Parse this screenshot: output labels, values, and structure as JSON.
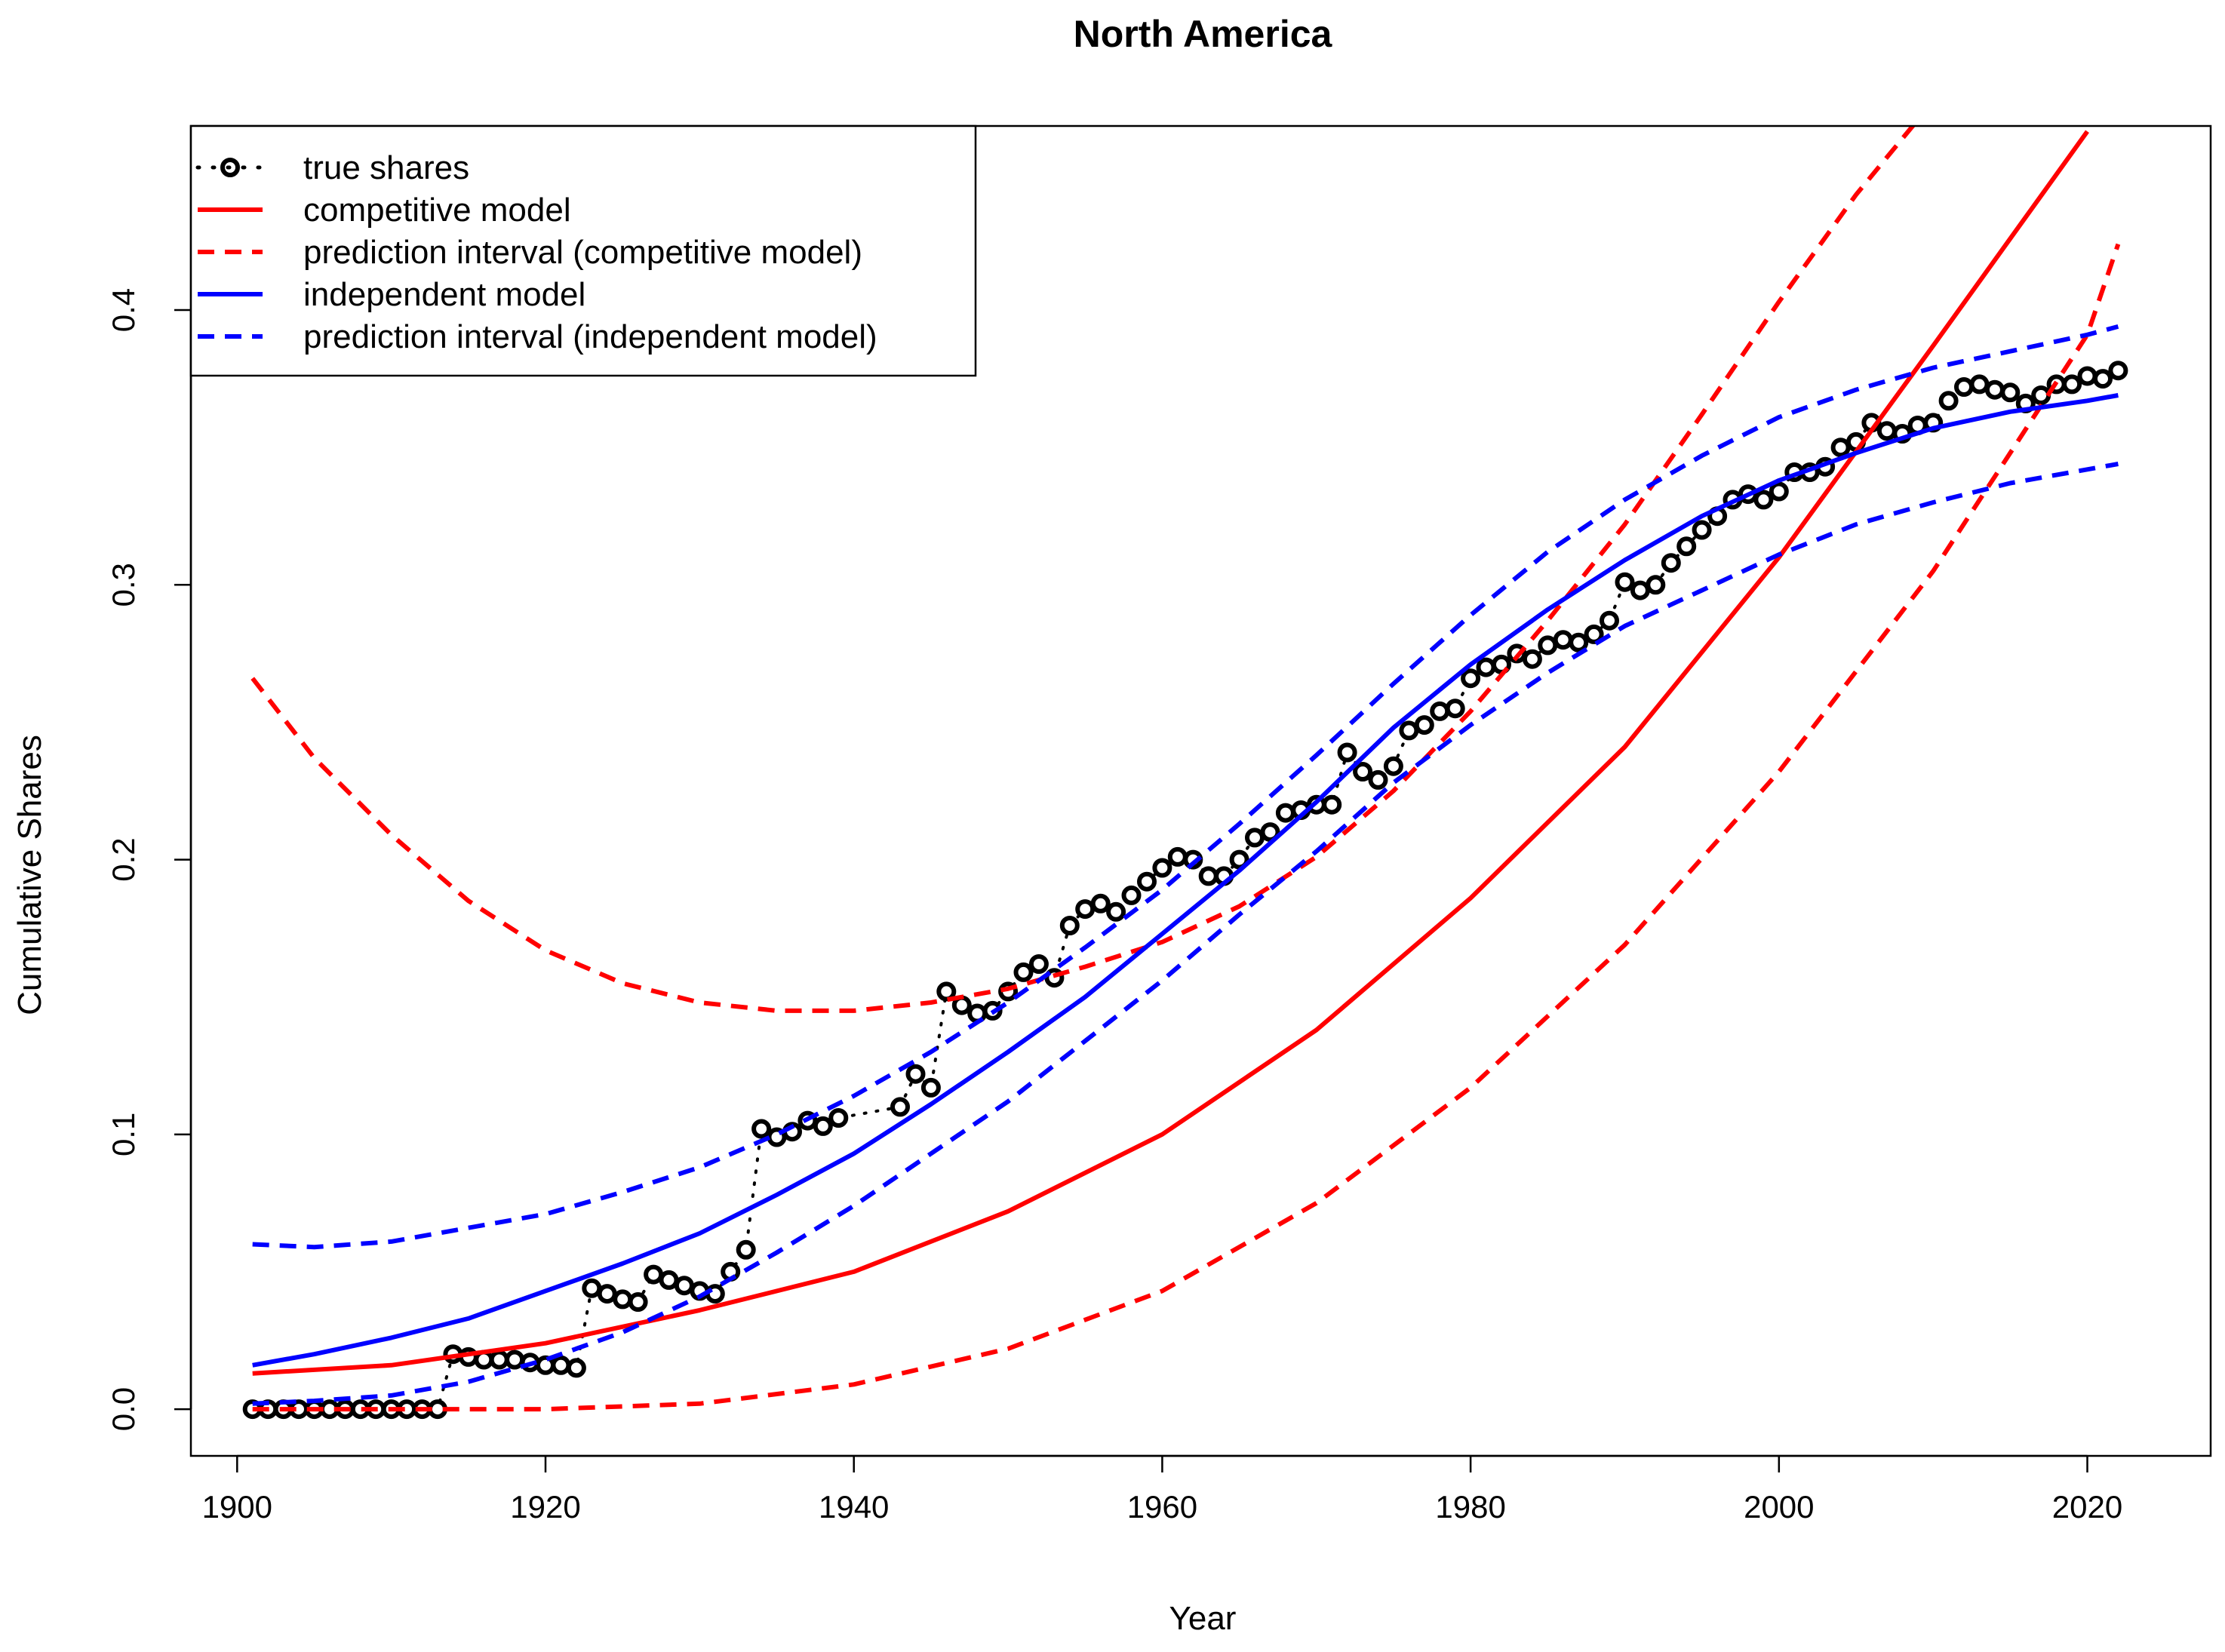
{
  "chart_data": {
    "type": "line",
    "title": "North America",
    "xlabel": "Year",
    "ylabel": "Cumulative Shares",
    "xlim": [
      1897,
      2028
    ],
    "ylim": [
      -0.017,
      0.467
    ],
    "x_ticks": [
      1900,
      1920,
      1940,
      1960,
      1980,
      2000,
      2020
    ],
    "x_tick_labels": [
      "1900",
      "1920",
      "1940",
      "1960",
      "1980",
      "2000",
      "2020"
    ],
    "y_ticks": [
      0.0,
      0.1,
      0.2,
      0.3,
      0.4
    ],
    "y_tick_labels": [
      "0.0",
      "0.1",
      "0.2",
      "0.3",
      "0.4"
    ],
    "grid": false,
    "legend_position": "top-left",
    "colors": {
      "competitive": "#ff0000",
      "independent": "#0000ff",
      "observed": "#000000"
    },
    "series": [
      {
        "name": "true shares",
        "style": "points-dotted",
        "x": [
          1901,
          1902,
          1903,
          1904,
          1905,
          1906,
          1907,
          1908,
          1909,
          1910,
          1911,
          1912,
          1913,
          1914,
          1915,
          1916,
          1917,
          1918,
          1919,
          1920,
          1921,
          1922,
          1923,
          1924,
          1925,
          1926,
          1927,
          1928,
          1929,
          1930,
          1931,
          1932,
          1933,
          1934,
          1935,
          1936,
          1937,
          1938,
          1939,
          1943,
          1944,
          1945,
          1946,
          1947,
          1948,
          1949,
          1950,
          1951,
          1952,
          1953,
          1954,
          1955,
          1956,
          1957,
          1958,
          1959,
          1960,
          1961,
          1962,
          1963,
          1964,
          1965,
          1966,
          1967,
          1968,
          1969,
          1970,
          1971,
          1972,
          1973,
          1974,
          1975,
          1976,
          1977,
          1978,
          1979,
          1980,
          1981,
          1982,
          1983,
          1984,
          1985,
          1986,
          1987,
          1988,
          1989,
          1990,
          1991,
          1992,
          1993,
          1994,
          1995,
          1996,
          1997,
          1998,
          1999,
          2000,
          2001,
          2002,
          2003,
          2004,
          2005,
          2006,
          2007,
          2008,
          2009,
          2010,
          2011,
          2012,
          2013,
          2014,
          2015,
          2016,
          2017,
          2018,
          2019,
          2020,
          2021,
          2022
        ],
        "y": [
          0.0,
          0.0,
          0.0,
          0.0,
          0.0,
          0.0,
          0.0,
          0.0,
          0.0,
          0.0,
          0.0,
          0.0,
          0.0,
          0.02,
          0.019,
          0.018,
          0.018,
          0.018,
          0.017,
          0.016,
          0.016,
          0.015,
          0.044,
          0.042,
          0.04,
          0.039,
          0.049,
          0.047,
          0.045,
          0.043,
          0.042,
          0.05,
          0.058,
          0.102,
          0.099,
          0.101,
          0.105,
          0.103,
          0.106,
          0.11,
          0.122,
          0.117,
          0.152,
          0.147,
          0.144,
          0.145,
          0.152,
          0.159,
          0.162,
          0.157,
          0.176,
          0.182,
          0.184,
          0.181,
          0.187,
          0.192,
          0.197,
          0.201,
          0.2,
          0.194,
          0.194,
          0.2,
          0.208,
          0.21,
          0.217,
          0.218,
          0.22,
          0.22,
          0.239,
          0.232,
          0.229,
          0.234,
          0.247,
          0.249,
          0.254,
          0.255,
          0.266,
          0.27,
          0.271,
          0.275,
          0.273,
          0.278,
          0.28,
          0.279,
          0.282,
          0.287,
          0.301,
          0.298,
          0.3,
          0.308,
          0.314,
          0.32,
          0.325,
          0.331,
          0.333,
          0.331,
          0.334,
          0.341,
          0.341,
          0.343,
          0.35,
          0.352,
          0.359,
          0.356,
          0.355,
          0.358,
          0.359,
          0.367,
          0.372,
          0.373,
          0.371,
          0.37,
          0.366,
          0.369,
          0.373,
          0.373,
          0.376,
          0.375,
          0.378
        ]
      },
      {
        "name": "competitive model",
        "style": "solid",
        "x": [
          1901,
          1910,
          1920,
          1930,
          1940,
          1950,
          1960,
          1970,
          1980,
          1990,
          2000,
          2010,
          2020
        ],
        "y": [
          0.013,
          0.016,
          0.024,
          0.036,
          0.05,
          0.072,
          0.1,
          0.138,
          0.186,
          0.241,
          0.31,
          0.387,
          0.465
        ]
      },
      {
        "name": "prediction interval (competitive model)",
        "style": "dashed",
        "x": [
          1901,
          1905,
          1910,
          1915,
          1920,
          1925,
          1930,
          1935,
          1940,
          1945,
          1950,
          1955,
          1960,
          1965,
          1970,
          1975,
          1980,
          1985,
          1990,
          1995,
          2000,
          2005,
          2010
        ],
        "y": [
          0.266,
          0.237,
          0.209,
          0.185,
          0.167,
          0.155,
          0.148,
          0.145,
          0.145,
          0.148,
          0.153,
          0.161,
          0.17,
          0.183,
          0.201,
          0.225,
          0.254,
          0.287,
          0.322,
          0.362,
          0.403,
          0.442,
          0.476
        ],
        "lower_x": [
          1901,
          1910,
          1920,
          1930,
          1940,
          1950,
          1960,
          1970,
          1980,
          1990,
          2000,
          2010,
          2020,
          2022
        ],
        "lower_y": [
          0.0,
          0.0,
          0.0,
          0.002,
          0.009,
          0.022,
          0.043,
          0.075,
          0.117,
          0.169,
          0.232,
          0.305,
          0.391,
          0.424
        ]
      },
      {
        "name": "independent model",
        "style": "solid",
        "x": [
          1901,
          1905,
          1910,
          1915,
          1920,
          1925,
          1930,
          1935,
          1940,
          1945,
          1950,
          1955,
          1960,
          1965,
          1970,
          1975,
          1980,
          1985,
          1990,
          1995,
          2000,
          2005,
          2010,
          2015,
          2020,
          2022
        ],
        "y": [
          0.016,
          0.02,
          0.026,
          0.033,
          0.043,
          0.053,
          0.064,
          0.078,
          0.093,
          0.111,
          0.13,
          0.15,
          0.173,
          0.196,
          0.221,
          0.248,
          0.271,
          0.291,
          0.309,
          0.325,
          0.338,
          0.348,
          0.357,
          0.363,
          0.367,
          0.369
        ]
      },
      {
        "name": "prediction interval (independent model)",
        "style": "dashed",
        "x": [
          1901,
          1905,
          1910,
          1915,
          1920,
          1925,
          1930,
          1935,
          1940,
          1945,
          1950,
          1955,
          1960,
          1965,
          1970,
          1975,
          1980,
          1985,
          1990,
          1995,
          2000,
          2005,
          2010,
          2015,
          2020,
          2022
        ],
        "y": [
          0.06,
          0.059,
          0.061,
          0.066,
          0.071,
          0.079,
          0.088,
          0.1,
          0.114,
          0.13,
          0.148,
          0.168,
          0.189,
          0.213,
          0.238,
          0.264,
          0.289,
          0.312,
          0.331,
          0.347,
          0.361,
          0.371,
          0.379,
          0.385,
          0.391,
          0.394
        ],
        "lower_x": [
          1901,
          1905,
          1910,
          1915,
          1920,
          1925,
          1930,
          1935,
          1940,
          1945,
          1950,
          1955,
          1960,
          1965,
          1970,
          1975,
          1980,
          1985,
          1990,
          1995,
          2000,
          2005,
          2010,
          2015,
          2020,
          2022
        ],
        "lower_y": [
          0.002,
          0.003,
          0.005,
          0.01,
          0.018,
          0.028,
          0.041,
          0.057,
          0.074,
          0.093,
          0.112,
          0.134,
          0.156,
          0.18,
          0.203,
          0.228,
          0.249,
          0.268,
          0.285,
          0.298,
          0.311,
          0.322,
          0.33,
          0.337,
          0.342,
          0.344
        ]
      }
    ]
  }
}
